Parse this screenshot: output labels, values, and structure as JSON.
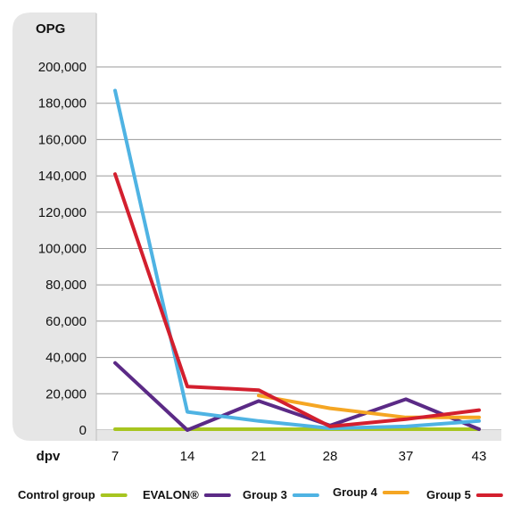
{
  "chart_data": {
    "type": "line",
    "ylabel": "OPG",
    "xlabel": "dpv",
    "categories": [
      "7",
      "14",
      "21",
      "28",
      "37",
      "43"
    ],
    "ylim": [
      0,
      200000
    ],
    "yticks": [
      "0",
      "20,000",
      "40,000",
      "60,000",
      "80,000",
      "100,000",
      "120,000",
      "140,000",
      "160,000",
      "180,000",
      "200,000"
    ],
    "grid": true,
    "legend_position": "bottom",
    "series": [
      {
        "name": "Control group",
        "color": "#a7c520",
        "values": [
          500,
          500,
          500,
          500,
          500,
          500
        ]
      },
      {
        "name": "EVALON®",
        "color": "#5b2a86",
        "values": [
          37000,
          0,
          16000,
          2500,
          17000,
          500
        ]
      },
      {
        "name": "Group 3",
        "color": "#4fb3e3",
        "values": [
          187000,
          10000,
          5000,
          1000,
          2000,
          5000
        ]
      },
      {
        "name": "Group 4",
        "color": "#f5a623",
        "values": [
          null,
          null,
          19000,
          12000,
          7000,
          7000
        ]
      },
      {
        "name": "Group 5",
        "color": "#d31f2e",
        "values": [
          141000,
          24000,
          22000,
          2000,
          6000,
          11000
        ]
      }
    ]
  }
}
